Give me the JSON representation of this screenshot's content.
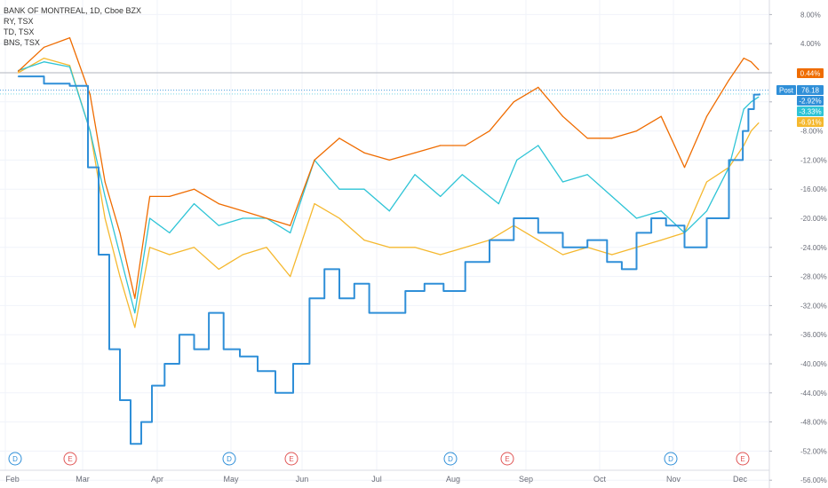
{
  "legend": {
    "main": "BANK OF MONTREAL, 1D, Cboe BZX",
    "items": [
      "RY, TSX",
      "TD, TSX",
      "BNS, TSX"
    ]
  },
  "colors": {
    "bmo": "#2f8fd8",
    "ry": "#2ec4d6",
    "td": "#ef6c00",
    "bns": "#f5b82e",
    "axis_text": "#6a6d78",
    "grid": "#f0f3fa",
    "earnings": "#e05555",
    "dividend": "#2f8fd8"
  },
  "chart_data": {
    "type": "line",
    "x_axis_labels": [
      "Feb",
      "Mar",
      "Apr",
      "May",
      "Jun",
      "Jul",
      "Aug",
      "Sep",
      "Oct",
      "Nov",
      "Dec"
    ],
    "y_axis_labels": [
      "8.00%",
      "4.00%",
      "0.00%",
      "-4.00%",
      "-8.00%",
      "-12.00%",
      "-16.00%",
      "-20.00%",
      "-24.00%",
      "-28.00%",
      "-32.00%",
      "-36.00%",
      "-40.00%",
      "-44.00%",
      "-48.00%",
      "-52.00%",
      "-56.00%"
    ],
    "ylim": [
      -56,
      10
    ],
    "y_unit": "% change",
    "grid": true,
    "series": [
      {
        "name": "BANK OF MONTREAL",
        "color": "#2f8fd8",
        "style": "step",
        "points": [
          [
            "Feb",
            -0.5
          ],
          [
            "Feb",
            -1.5
          ],
          [
            "Feb",
            -1.8
          ],
          [
            "Mar",
            -13
          ],
          [
            "Mar",
            -25
          ],
          [
            "Mar",
            -38
          ],
          [
            "Mar",
            -45
          ],
          [
            "Mar",
            -51
          ],
          [
            "Mar",
            -48
          ],
          [
            "Mar",
            -43
          ],
          [
            "Apr",
            -40
          ],
          [
            "Apr",
            -36
          ],
          [
            "Apr",
            -38
          ],
          [
            "Apr",
            -33
          ],
          [
            "Apr",
            -38
          ],
          [
            "May",
            -39
          ],
          [
            "May",
            -41
          ],
          [
            "May",
            -44
          ],
          [
            "May",
            -40
          ],
          [
            "Jun",
            -31
          ],
          [
            "Jun",
            -27
          ],
          [
            "Jun",
            -31
          ],
          [
            "Jun",
            -29
          ],
          [
            "Jun",
            -33
          ],
          [
            "Jul",
            -33
          ],
          [
            "Jul",
            -30
          ],
          [
            "Jul",
            -29
          ],
          [
            "Jul",
            -30
          ],
          [
            "Aug",
            -26
          ],
          [
            "Aug",
            -23
          ],
          [
            "Aug",
            -20
          ],
          [
            "Sep",
            -22
          ],
          [
            "Sep",
            -24
          ],
          [
            "Sep",
            -23
          ],
          [
            "Oct",
            -26
          ],
          [
            "Oct",
            -27
          ],
          [
            "Oct",
            -22
          ],
          [
            "Oct",
            -20
          ],
          [
            "Oct",
            -21
          ],
          [
            "Nov",
            -24
          ],
          [
            "Nov",
            -20
          ],
          [
            "Nov",
            -12
          ],
          [
            "Dec",
            -8
          ],
          [
            "Dec",
            -5
          ],
          [
            "Dec",
            -3
          ],
          [
            "Dec",
            -2.9
          ]
        ]
      },
      {
        "name": "RY, TSX",
        "color": "#2ec4d6",
        "style": "line",
        "points": [
          [
            "Feb",
            0.3
          ],
          [
            "Feb",
            1.5
          ],
          [
            "Feb",
            0.8
          ],
          [
            "Mar",
            -8
          ],
          [
            "Mar",
            -17
          ],
          [
            "Mar",
            -25
          ],
          [
            "Mar",
            -33
          ],
          [
            "Mar",
            -20
          ],
          [
            "Apr",
            -22
          ],
          [
            "Apr",
            -18
          ],
          [
            "Apr",
            -21
          ],
          [
            "May",
            -20
          ],
          [
            "May",
            -20
          ],
          [
            "May",
            -22
          ],
          [
            "Jun",
            -12
          ],
          [
            "Jun",
            -16
          ],
          [
            "Jun",
            -16
          ],
          [
            "Jul",
            -19
          ],
          [
            "Jul",
            -14
          ],
          [
            "Jul",
            -17
          ],
          [
            "Aug",
            -14
          ],
          [
            "Aug",
            -16
          ],
          [
            "Aug",
            -18
          ],
          [
            "Aug",
            -12
          ],
          [
            "Sep",
            -10
          ],
          [
            "Sep",
            -15
          ],
          [
            "Sep",
            -14
          ],
          [
            "Oct",
            -17
          ],
          [
            "Oct",
            -20
          ],
          [
            "Oct",
            -19
          ],
          [
            "Nov",
            -22
          ],
          [
            "Nov",
            -19
          ],
          [
            "Nov",
            -13
          ],
          [
            "Dec",
            -5
          ],
          [
            "Dec",
            -4
          ],
          [
            "Dec",
            -3.33
          ]
        ]
      },
      {
        "name": "TD, TSX",
        "color": "#ef6c00",
        "style": "line",
        "points": [
          [
            "Feb",
            0.2
          ],
          [
            "Feb",
            3.5
          ],
          [
            "Feb",
            4.8
          ],
          [
            "Mar",
            -3
          ],
          [
            "Mar",
            -15
          ],
          [
            "Mar",
            -22
          ],
          [
            "Mar",
            -31
          ],
          [
            "Mar",
            -17
          ],
          [
            "Apr",
            -17
          ],
          [
            "Apr",
            -16
          ],
          [
            "Apr",
            -18
          ],
          [
            "May",
            -19
          ],
          [
            "May",
            -20
          ],
          [
            "May",
            -21
          ],
          [
            "Jun",
            -12
          ],
          [
            "Jun",
            -9
          ],
          [
            "Jun",
            -11
          ],
          [
            "Jul",
            -12
          ],
          [
            "Jul",
            -11
          ],
          [
            "Jul",
            -10
          ],
          [
            "Aug",
            -10
          ],
          [
            "Aug",
            -8
          ],
          [
            "Aug",
            -4
          ],
          [
            "Sep",
            -2
          ],
          [
            "Sep",
            -6
          ],
          [
            "Sep",
            -9
          ],
          [
            "Oct",
            -9
          ],
          [
            "Oct",
            -8
          ],
          [
            "Oct",
            -6
          ],
          [
            "Nov",
            -13
          ],
          [
            "Nov",
            -6
          ],
          [
            "Nov",
            -1
          ],
          [
            "Dec",
            2
          ],
          [
            "Dec",
            1.5
          ],
          [
            "Dec",
            0.44
          ]
        ]
      },
      {
        "name": "BNS, TSX",
        "color": "#f5b82e",
        "style": "line",
        "points": [
          [
            "Feb",
            0
          ],
          [
            "Feb",
            2
          ],
          [
            "Feb",
            1
          ],
          [
            "Mar",
            -8
          ],
          [
            "Mar",
            -20
          ],
          [
            "Mar",
            -28
          ],
          [
            "Mar",
            -35
          ],
          [
            "Mar",
            -24
          ],
          [
            "Apr",
            -25
          ],
          [
            "Apr",
            -24
          ],
          [
            "Apr",
            -27
          ],
          [
            "May",
            -25
          ],
          [
            "May",
            -24
          ],
          [
            "May",
            -28
          ],
          [
            "Jun",
            -18
          ],
          [
            "Jun",
            -20
          ],
          [
            "Jun",
            -23
          ],
          [
            "Jul",
            -24
          ],
          [
            "Jul",
            -24
          ],
          [
            "Jul",
            -25
          ],
          [
            "Aug",
            -24
          ],
          [
            "Aug",
            -23
          ],
          [
            "Aug",
            -21
          ],
          [
            "Sep",
            -23
          ],
          [
            "Sep",
            -25
          ],
          [
            "Sep",
            -24
          ],
          [
            "Oct",
            -25
          ],
          [
            "Oct",
            -24
          ],
          [
            "Oct",
            -23
          ],
          [
            "Nov",
            -22
          ],
          [
            "Nov",
            -15
          ],
          [
            "Nov",
            -13
          ],
          [
            "Dec",
            -10
          ],
          [
            "Dec",
            -8
          ],
          [
            "Dec",
            -6.91
          ]
        ]
      }
    ],
    "price_tags": [
      {
        "label": "0.44%",
        "value": 0.44,
        "color": "#ef6c00"
      },
      {
        "label": "Post",
        "value": -2.4,
        "color": "#2f8fd8"
      },
      {
        "label": "76.18",
        "value": -2.4,
        "color": "#2f8fd8"
      },
      {
        "label": "-2.92%",
        "value": -2.92,
        "color": "#2f8fd8"
      },
      {
        "label": "-3.33%",
        "value": -3.33,
        "color": "#2ec4d6"
      },
      {
        "label": "-6.91%",
        "value": -6.91,
        "color": "#f5b82e"
      }
    ],
    "events": [
      {
        "type": "D",
        "date": "Feb"
      },
      {
        "type": "E",
        "date": "Mar"
      },
      {
        "type": "D",
        "date": "May"
      },
      {
        "type": "E",
        "date": "Jun"
      },
      {
        "type": "D",
        "date": "Aug"
      },
      {
        "type": "E",
        "date": "Sep"
      },
      {
        "type": "D",
        "date": "Nov"
      },
      {
        "type": "E",
        "date": "Dec"
      }
    ]
  }
}
